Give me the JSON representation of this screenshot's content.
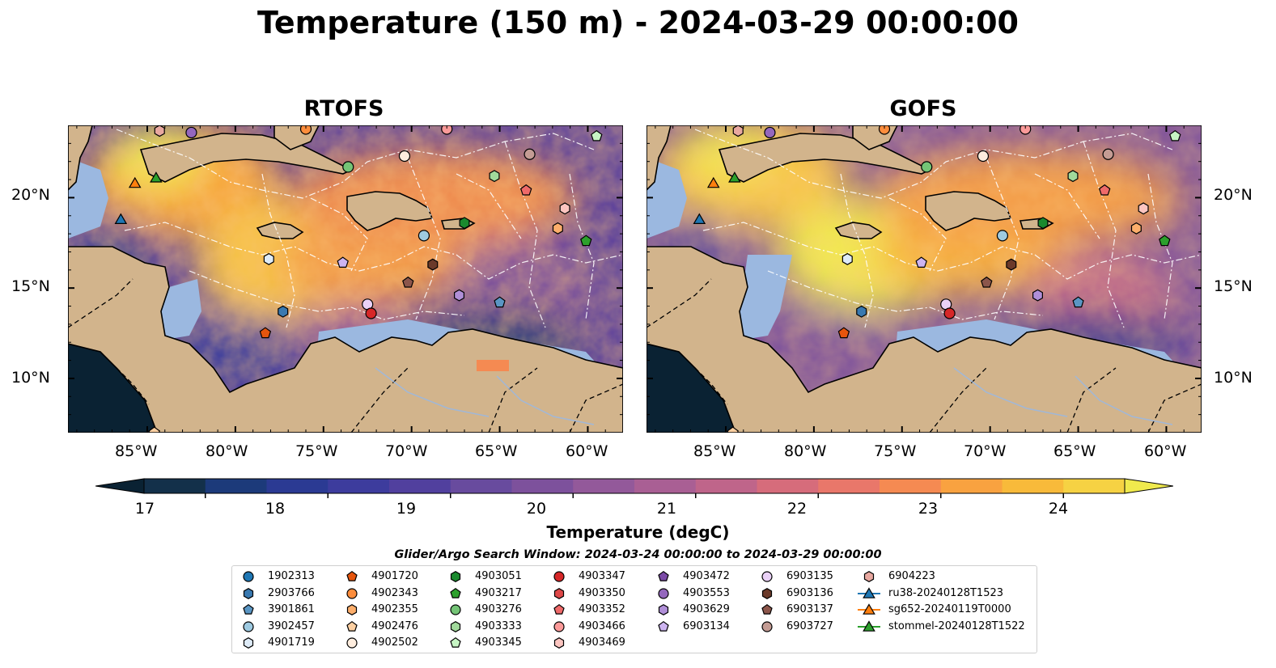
{
  "title": "Temperature (150 m) - 2024-03-29 00:00:00",
  "panels": [
    {
      "name": "RTOFS"
    },
    {
      "name": "GOFS"
    }
  ],
  "map": {
    "lon_range": [
      -89.5,
      -58.0
    ],
    "lat_range": [
      7.0,
      24.0
    ],
    "lon_ticks": [
      "85°W",
      "80°W",
      "75°W",
      "70°W",
      "65°W",
      "60°W"
    ],
    "lat_ticks": [
      "20°N",
      "15°N",
      "10°N"
    ],
    "land_color": "#d2b48c",
    "shelf_color": "#9bb8e0"
  },
  "colorbar": {
    "title": "Temperature (degC)",
    "ticks": [
      "17",
      "18",
      "19",
      "20",
      "21",
      "22",
      "23",
      "24"
    ],
    "range": [
      16.5,
      24.5
    ],
    "colors": [
      "#0a2233",
      "#13304a",
      "#1c3a7a",
      "#2b3a93",
      "#3d3c9d",
      "#51409e",
      "#684b9e",
      "#7d519c",
      "#93599a",
      "#a95f94",
      "#bf658a",
      "#d66c7b",
      "#e9776a",
      "#f58a52",
      "#f9a240",
      "#f8ba3a",
      "#f6d243",
      "#f0ea4d"
    ]
  },
  "legend": {
    "title": "Glider/Argo Search Window: 2024-03-24 00:00:00 to 2024-03-29 00:00:00",
    "columns": [
      [
        {
          "label": "1902313",
          "marker": "circle",
          "color": "#1f77b4"
        },
        {
          "label": "2903766",
          "marker": "hexagon",
          "color": "#3979b0"
        },
        {
          "label": "3901861",
          "marker": "pentagon",
          "color": "#5a96c4"
        },
        {
          "label": "3902457",
          "marker": "circle",
          "color": "#9ecae1"
        },
        {
          "label": "4901719",
          "marker": "hexagon",
          "color": "#deebf7"
        }
      ],
      [
        {
          "label": "4901720",
          "marker": "pentagon",
          "color": "#e6550d"
        },
        {
          "label": "4902343",
          "marker": "circle",
          "color": "#fd8d3c"
        },
        {
          "label": "4902355",
          "marker": "hexagon",
          "color": "#fdae6b"
        },
        {
          "label": "4902476",
          "marker": "pentagon",
          "color": "#fdd0a2"
        },
        {
          "label": "4902502",
          "marker": "circle",
          "color": "#feedde"
        }
      ],
      [
        {
          "label": "4903051",
          "marker": "hexagon",
          "color": "#1a8a2e"
        },
        {
          "label": "4903217",
          "marker": "pentagon",
          "color": "#2ca02c"
        },
        {
          "label": "4903276",
          "marker": "circle",
          "color": "#74c476"
        },
        {
          "label": "4903333",
          "marker": "hexagon",
          "color": "#a1d99b"
        },
        {
          "label": "4903345",
          "marker": "pentagon",
          "color": "#c7f5c4"
        }
      ],
      [
        {
          "label": "4903347",
          "marker": "circle",
          "color": "#d62728"
        },
        {
          "label": "4903350",
          "marker": "hexagon",
          "color": "#de4848"
        },
        {
          "label": "4903352",
          "marker": "pentagon",
          "color": "#ef6a6a"
        },
        {
          "label": "4903466",
          "marker": "circle",
          "color": "#fb9a99"
        },
        {
          "label": "4903469",
          "marker": "hexagon",
          "color": "#fcc5c0"
        }
      ],
      [
        {
          "label": "4903472",
          "marker": "pentagon",
          "color": "#7b4aa6"
        },
        {
          "label": "4903553",
          "marker": "circle",
          "color": "#9467bd"
        },
        {
          "label": "4903629",
          "marker": "hexagon",
          "color": "#b08fd8"
        },
        {
          "label": "6903134",
          "marker": "pentagon",
          "color": "#cdb4f0"
        },
        {
          "label": "",
          "marker": "none",
          "color": ""
        }
      ],
      [
        {
          "label": "6903135",
          "marker": "circle",
          "color": "#ead1f7"
        },
        {
          "label": "6903136",
          "marker": "hexagon",
          "color": "#6b3a2a"
        },
        {
          "label": "6903137",
          "marker": "pentagon",
          "color": "#8c564b"
        },
        {
          "label": "6903727",
          "marker": "circle",
          "color": "#c49c94"
        },
        {
          "label": "",
          "marker": "none",
          "color": ""
        }
      ],
      [
        {
          "label": "6904223",
          "marker": "hexagon",
          "color": "#e8a8a0"
        },
        {
          "label": "ru38-20240128T1523",
          "marker": "line-triangle",
          "color": "#1f77b4"
        },
        {
          "label": "sg652-20240119T0000",
          "marker": "line-triangle",
          "color": "#ff7f0e"
        },
        {
          "label": "stommel-20240128T1522",
          "marker": "line-triangle",
          "color": "#2ca02c"
        },
        {
          "label": "",
          "marker": "none",
          "color": ""
        }
      ]
    ]
  },
  "markers": [
    {
      "label": "ru38-20240128T1523",
      "shape": "triangle",
      "color": "#1f77b4",
      "lon": -86.5,
      "lat": 18.8
    },
    {
      "label": "sg652-20240119T0000",
      "shape": "triangle",
      "color": "#ff7f0e",
      "lon": -85.7,
      "lat": 20.8
    },
    {
      "label": "stommel-20240128T1522",
      "shape": "triangle",
      "color": "#2ca02c",
      "lon": -84.5,
      "lat": 21.1
    },
    {
      "label": "4903276",
      "shape": "circle",
      "color": "#74c476",
      "lon": -73.6,
      "lat": 21.7
    },
    {
      "label": "4902502",
      "shape": "circle",
      "color": "#feedde",
      "lon": -70.4,
      "lat": 22.3
    },
    {
      "label": "6903727",
      "shape": "circle",
      "color": "#c49c94",
      "lon": -63.3,
      "lat": 22.4
    },
    {
      "label": "4903345",
      "shape": "pentagon",
      "color": "#c7f5c4",
      "lon": -59.5,
      "lat": 23.4
    },
    {
      "label": "4903333",
      "shape": "hexagon",
      "color": "#a1d99b",
      "lon": -65.3,
      "lat": 21.2
    },
    {
      "label": "4903352",
      "shape": "pentagon",
      "color": "#ef6a6a",
      "lon": -63.5,
      "lat": 20.4
    },
    {
      "label": "4903469",
      "shape": "hexagon",
      "color": "#fcc5c0",
      "lon": -61.3,
      "lat": 19.4
    },
    {
      "label": "4902355",
      "shape": "hexagon",
      "color": "#fdae6b",
      "lon": -61.7,
      "lat": 18.3
    },
    {
      "label": "4903051",
      "shape": "hexagon",
      "color": "#1a8a2e",
      "lon": -67.0,
      "lat": 18.6
    },
    {
      "label": "3902457",
      "shape": "circle",
      "color": "#9ecae1",
      "lon": -69.3,
      "lat": 17.9
    },
    {
      "label": "4903217",
      "shape": "pentagon",
      "color": "#2ca02c",
      "lon": -60.1,
      "lat": 17.6
    },
    {
      "label": "4901719",
      "shape": "hexagon",
      "color": "#deebf7",
      "lon": -78.1,
      "lat": 16.6
    },
    {
      "label": "6903134",
      "shape": "pentagon",
      "color": "#cdb4f0",
      "lon": -73.9,
      "lat": 16.4
    },
    {
      "label": "6903136",
      "shape": "hexagon",
      "color": "#6b3a2a",
      "lon": -68.8,
      "lat": 16.3
    },
    {
      "label": "6903137",
      "shape": "pentagon",
      "color": "#8c564b",
      "lon": -70.2,
      "lat": 15.3
    },
    {
      "label": "4903629",
      "shape": "hexagon",
      "color": "#b08fd8",
      "lon": -67.3,
      "lat": 14.6
    },
    {
      "label": "3901861",
      "shape": "pentagon",
      "color": "#5a96c4",
      "lon": -65.0,
      "lat": 14.2
    },
    {
      "label": "6903135",
      "shape": "circle",
      "color": "#ead1f7",
      "lon": -72.5,
      "lat": 14.1
    },
    {
      "label": "4903347",
      "shape": "circle",
      "color": "#d62728",
      "lon": -72.3,
      "lat": 13.6
    },
    {
      "label": "2903766",
      "shape": "hexagon",
      "color": "#3979b0",
      "lon": -77.3,
      "lat": 13.7
    },
    {
      "label": "4901720",
      "shape": "pentagon",
      "color": "#e6550d",
      "lon": -78.3,
      "lat": 12.5
    },
    {
      "label": "4903553",
      "shape": "circle",
      "color": "#9467bd",
      "lon": -82.5,
      "lat": 23.6
    },
    {
      "label": "6904223",
      "shape": "hexagon",
      "color": "#e8a8a0",
      "lon": -84.3,
      "lat": 23.7
    },
    {
      "label": "4902476",
      "shape": "pentagon",
      "color": "#fdd0a2",
      "lon": -84.6,
      "lat": 7.0
    },
    {
      "label": "4902343",
      "shape": "circle",
      "color": "#fd8d3c",
      "lon": -76.0,
      "lat": 23.8
    },
    {
      "label": "4903466",
      "shape": "circle",
      "color": "#fb9a99",
      "lon": -68.0,
      "lat": 23.8
    }
  ]
}
